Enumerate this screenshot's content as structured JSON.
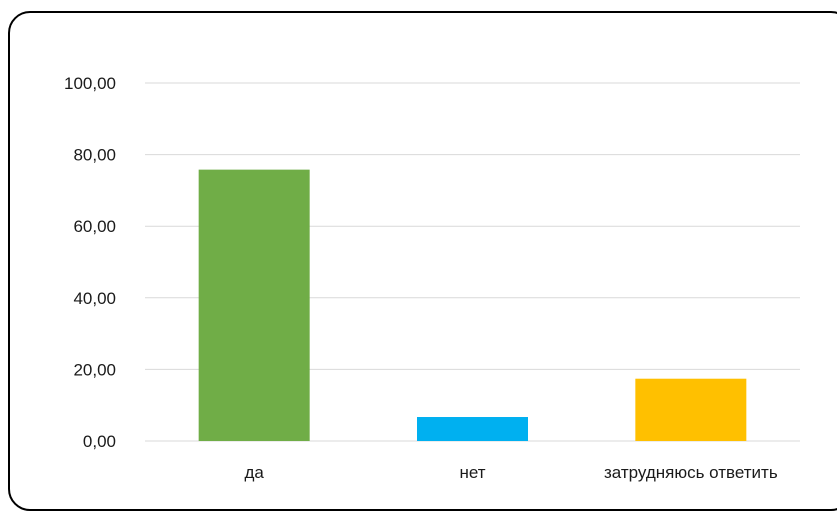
{
  "chart_data": {
    "type": "bar",
    "title": "",
    "xlabel": "",
    "ylabel": "",
    "categories": [
      "да",
      "нет",
      "затрудняюсь ответить"
    ],
    "values": [
      75.8,
      6.7,
      17.4
    ],
    "colors": [
      "#70ad47",
      "#00b0f0",
      "#ffc000"
    ],
    "ylim": [
      0,
      100
    ],
    "yticks": [
      "0,00",
      "20,00",
      "40,00",
      "60,00",
      "80,00",
      "100,00"
    ],
    "grid": true,
    "legend": "none"
  }
}
